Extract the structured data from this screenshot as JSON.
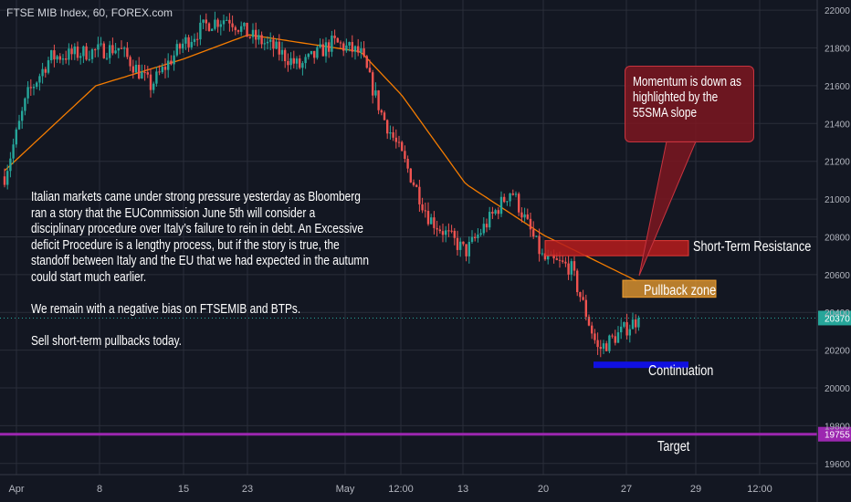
{
  "title": "FTSE MIB Index, 60, FOREX.com",
  "commentary": {
    "paragraph1": "Italian markets came under strong pressure yesterday as Bloomberg ran a story that the EUCommission June 5th will consider a disciplinary procedure over Italy’s failure to rein in debt. An Excessive deficit Procedure is a lengthy process,  but if the story is true, the standoff between Italy and the EU that we had expected in the autumn could start much earlier.",
    "paragraph2": "We remain with a negative bias on FTSEMIB and BTPs.",
    "paragraph3": "Sell short-term pullbacks today."
  },
  "annotations": {
    "momentum_note": "Momentum is down as highlighted by the 55SMA slope",
    "resistance_label": "Short-Term Resistance",
    "pullback_label": "Pullback zone",
    "continuation_label": "Continuation",
    "target_label": "Target"
  },
  "colors": {
    "background": "#131722",
    "grid": "#2a2e39",
    "up_candle": "#26a69a",
    "down_candle": "#ef5350",
    "sma": "#f57c00",
    "resistance_zone": "#b71c1c",
    "pullback_zone": "#f0a030",
    "continuation_line": "#1010e0",
    "target_line": "#9c27b0",
    "last_price_badge": "#26a69a",
    "target_badge": "#9c27b0"
  },
  "chart_data": {
    "type": "candlestick",
    "title": "FTSE MIB Index, 60, FOREX.com",
    "timeframe": "60",
    "ylim": [
      19570,
      22020
    ],
    "y_ticks": [
      19600,
      19800,
      20000,
      20200,
      20400,
      20600,
      20800,
      21000,
      21200,
      21400,
      21600,
      21800,
      22000
    ],
    "x_ticks": [
      "Apr",
      "8",
      "15",
      "23",
      "May",
      "12:00",
      "13",
      "20",
      "27",
      "29",
      "12:00"
    ],
    "grid": true,
    "last_price": 20370,
    "last_price_label": "20370",
    "target_price_label": "19755",
    "indicator": "55 SMA",
    "price_path_anchors": [
      {
        "x": "Apr 1",
        "y": 21120
      },
      {
        "x": "Apr 3",
        "y": 21550
      },
      {
        "x": "Apr 5",
        "y": 21750
      },
      {
        "x": "Apr 9",
        "y": 21800
      },
      {
        "x": "Apr 11",
        "y": 21600
      },
      {
        "x": "Apr 15",
        "y": 21820
      },
      {
        "x": "Apr 17",
        "y": 21930
      },
      {
        "x": "Apr 19",
        "y": 21960
      },
      {
        "x": "Apr 23",
        "y": 21870
      },
      {
        "x": "Apr 25",
        "y": 21800
      },
      {
        "x": "Apr 29",
        "y": 21700
      },
      {
        "x": "May 1",
        "y": 21830
      },
      {
        "x": "May 3",
        "y": 21770
      },
      {
        "x": "May 7",
        "y": 21450
      },
      {
        "x": "May 9",
        "y": 21230
      },
      {
        "x": "May 13",
        "y": 20900
      },
      {
        "x": "May 15",
        "y": 20720
      },
      {
        "x": "May 17",
        "y": 21050
      },
      {
        "x": "May 20",
        "y": 20680
      },
      {
        "x": "May 22",
        "y": 20640
      },
      {
        "x": "May 24",
        "y": 20200
      },
      {
        "x": "May 27",
        "y": 20370
      }
    ],
    "sma_anchors": [
      {
        "x": "Apr 1",
        "y": 21150
      },
      {
        "x": "Apr 8",
        "y": 21600
      },
      {
        "x": "Apr 15",
        "y": 21740
      },
      {
        "x": "Apr 23",
        "y": 21870
      },
      {
        "x": "May 3",
        "y": 21780
      },
      {
        "x": "May 9",
        "y": 21550
      },
      {
        "x": "May 15",
        "y": 21080
      },
      {
        "x": "May 20",
        "y": 20810
      },
      {
        "x": "May 27",
        "y": 20560
      }
    ],
    "zones": [
      {
        "label": "Short-Term Resistance",
        "from": 20700,
        "to": 20780
      },
      {
        "label": "Pullback zone",
        "from": 20480,
        "to": 20570
      },
      {
        "label": "Continuation",
        "level": 20120
      },
      {
        "label": "Target",
        "level": 19755
      }
    ]
  }
}
